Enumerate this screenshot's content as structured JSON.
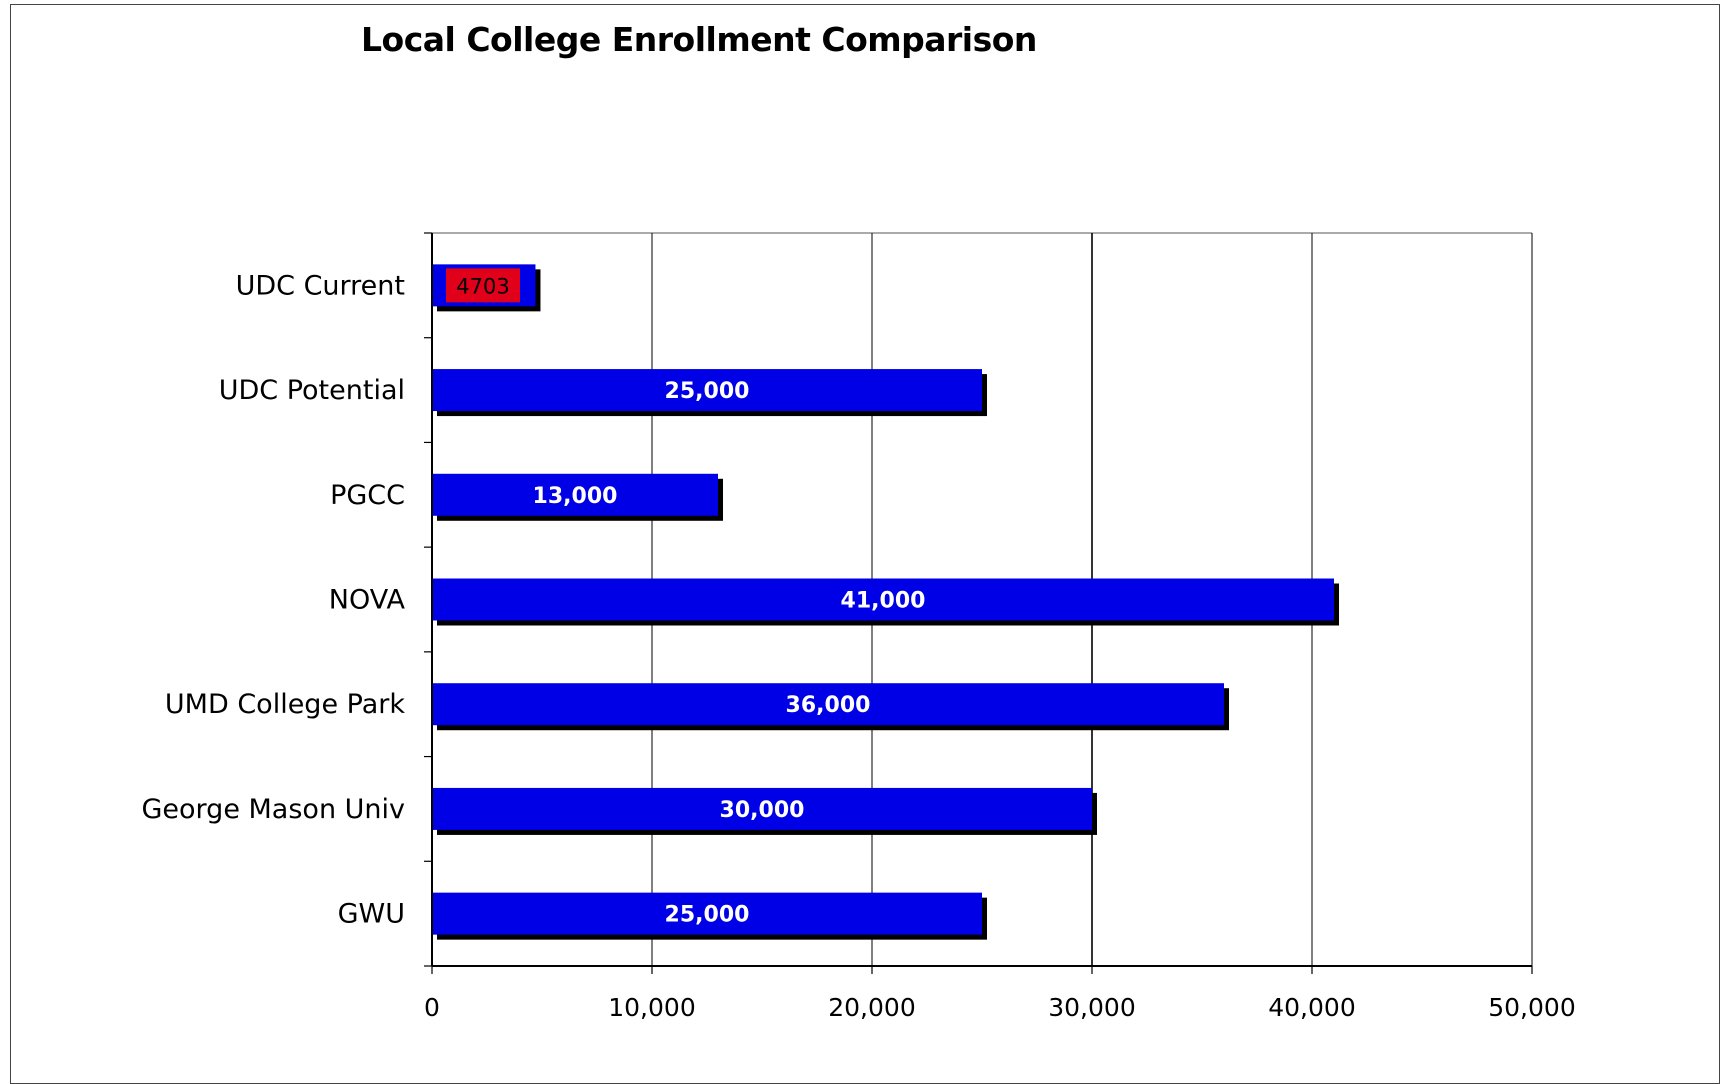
{
  "chart_data": {
    "type": "bar",
    "orientation": "horizontal",
    "title": "Local College Enrollment Comparison",
    "xlabel": "",
    "ylabel": "",
    "categories": [
      "UDC Current",
      "UDC Potential",
      "PGCC",
      "NOVA",
      "UMD College Park",
      "George Mason Univ",
      "GWU"
    ],
    "values": [
      4703,
      25000,
      13000,
      41000,
      36000,
      30000,
      25000
    ],
    "data_labels": [
      "4703",
      "25,000",
      "13,000",
      "41,000",
      "36,000",
      "30,000",
      "25,000"
    ],
    "bar_colors": [
      "#0000e6",
      "#0000e6",
      "#0000e6",
      "#0000e6",
      "#0000e6",
      "#0000e6",
      "#0000e6"
    ],
    "data_label_styles": [
      {
        "color": "#000000",
        "background": "#e0001a"
      },
      {
        "color": "#ffffff",
        "background": ""
      },
      {
        "color": "#ffffff",
        "background": ""
      },
      {
        "color": "#ffffff",
        "background": ""
      },
      {
        "color": "#ffffff",
        "background": ""
      },
      {
        "color": "#ffffff",
        "background": ""
      },
      {
        "color": "#ffffff",
        "background": ""
      }
    ],
    "xlim": [
      0,
      50000
    ],
    "xticks": [
      0,
      10000,
      20000,
      30000,
      40000,
      50000
    ],
    "xtick_labels": [
      "0",
      "10,000",
      "20,000",
      "30,000",
      "40,000",
      "50,000"
    ],
    "grid": true,
    "legend": "none",
    "colors": {
      "bar": "#0000e6",
      "shadow": "#000000",
      "grid": "#000000",
      "highlight_label_bg": "#e0001a"
    }
  }
}
